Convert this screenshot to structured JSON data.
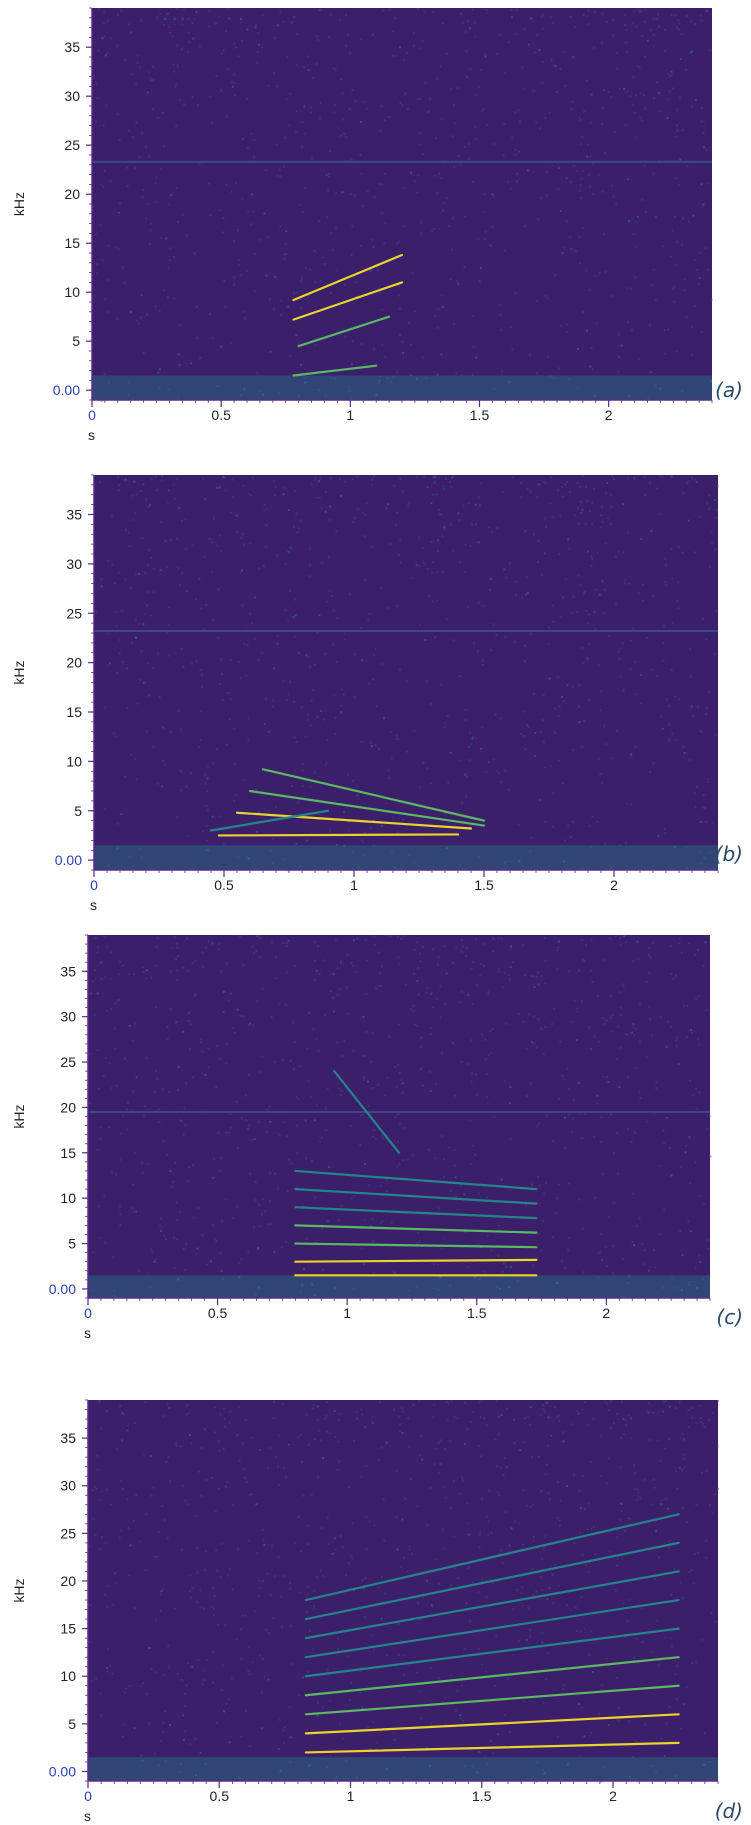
{
  "chart_data": [
    {
      "type": "heatmap",
      "panel_label": "(a)",
      "xlabel": "s",
      "ylabel": "kHz",
      "xlim": [
        0,
        2.4
      ],
      "ylim": [
        -1,
        39
      ],
      "x_ticks": [
        "0",
        "0.5",
        "1",
        "1.5",
        "2"
      ],
      "x_tick_values": [
        0,
        0.5,
        1,
        1.5,
        2
      ],
      "y_ticks": [
        "0.00",
        "5",
        "10",
        "15",
        "20",
        "25",
        "30",
        "35"
      ],
      "y_tick_values": [
        0,
        5,
        10,
        15,
        20,
        25,
        30,
        35
      ],
      "colormap": [
        "#3b1f6b",
        "#3b4e8c",
        "#21908d",
        "#5ec962",
        "#fde725"
      ],
      "noise_line_khz": 23.3,
      "call_segments": [
        {
          "t": [
            0.78,
            1.2
          ],
          "f": [
            9.2,
            13.8
          ]
        },
        {
          "t": [
            0.78,
            1.2
          ],
          "f": [
            7.2,
            11.0
          ]
        },
        {
          "t": [
            0.8,
            1.15
          ],
          "f": [
            4.5,
            7.5
          ]
        },
        {
          "t": [
            0.78,
            1.1
          ],
          "f": [
            1.5,
            2.5
          ]
        }
      ]
    },
    {
      "type": "heatmap",
      "panel_label": "(b)",
      "xlabel": "s",
      "ylabel": "kHz",
      "xlim": [
        0,
        2.4
      ],
      "ylim": [
        -1,
        39
      ],
      "x_ticks": [
        "0",
        "0.5",
        "1",
        "1.5",
        "2"
      ],
      "x_tick_values": [
        0,
        0.5,
        1,
        1.5,
        2
      ],
      "y_ticks": [
        "0.00",
        "5",
        "10",
        "15",
        "20",
        "25",
        "30",
        "35"
      ],
      "y_tick_values": [
        0,
        5,
        10,
        15,
        20,
        25,
        30,
        35
      ],
      "colormap": [
        "#3b1f6b",
        "#3b4e8c",
        "#21908d",
        "#5ec962",
        "#fde725"
      ],
      "noise_line_khz": 23.2,
      "call_segments": [
        {
          "t": [
            0.48,
            1.4
          ],
          "f": [
            2.5,
            2.6
          ]
        },
        {
          "t": [
            0.55,
            1.45
          ],
          "f": [
            4.8,
            3.2
          ]
        },
        {
          "t": [
            0.6,
            1.5
          ],
          "f": [
            7.0,
            3.5
          ]
        },
        {
          "t": [
            0.65,
            1.5
          ],
          "f": [
            9.2,
            4.0
          ]
        },
        {
          "t": [
            0.45,
            0.9
          ],
          "f": [
            3.0,
            5.0
          ]
        }
      ]
    },
    {
      "type": "heatmap",
      "panel_label": "(c)",
      "xlabel": "s",
      "ylabel": "kHz",
      "xlim": [
        0,
        2.4
      ],
      "ylim": [
        -1,
        39
      ],
      "x_ticks": [
        "0",
        "0.5",
        "1",
        "1.5",
        "2"
      ],
      "x_tick_values": [
        0,
        0.5,
        1,
        1.5,
        2
      ],
      "y_ticks": [
        "0.00",
        "5",
        "10",
        "15",
        "20",
        "25",
        "30",
        "35"
      ],
      "y_tick_values": [
        0,
        5,
        10,
        15,
        20,
        25,
        30,
        35
      ],
      "colormap": [
        "#3b1f6b",
        "#3b4e8c",
        "#21908d",
        "#5ec962",
        "#fde725"
      ],
      "noise_line_khz": 19.5,
      "call_segments": [
        {
          "t": [
            0.8,
            1.73
          ],
          "f": [
            1.5,
            1.5
          ]
        },
        {
          "t": [
            0.8,
            1.73
          ],
          "f": [
            3.0,
            3.2
          ]
        },
        {
          "t": [
            0.8,
            1.73
          ],
          "f": [
            5.0,
            4.6
          ]
        },
        {
          "t": [
            0.8,
            1.73
          ],
          "f": [
            7.0,
            6.2
          ]
        },
        {
          "t": [
            0.8,
            1.73
          ],
          "f": [
            9.0,
            7.8
          ]
        },
        {
          "t": [
            0.8,
            1.73
          ],
          "f": [
            11.0,
            9.4
          ]
        },
        {
          "t": [
            0.8,
            1.73
          ],
          "f": [
            13.0,
            11.0
          ]
        },
        {
          "t": [
            0.95,
            1.2
          ],
          "f": [
            24.0,
            15.0
          ]
        }
      ]
    },
    {
      "type": "heatmap",
      "panel_label": "(d)",
      "xlabel": "s",
      "ylabel": "kHz",
      "xlim": [
        0,
        2.4
      ],
      "ylim": [
        -1,
        39
      ],
      "x_ticks": [
        "0",
        "0.5",
        "1",
        "1.5",
        "2"
      ],
      "x_tick_values": [
        0,
        0.5,
        1,
        1.5,
        2
      ],
      "y_ticks": [
        "0.00",
        "5",
        "10",
        "15",
        "20",
        "25",
        "30",
        "35"
      ],
      "y_tick_values": [
        0,
        5,
        10,
        15,
        20,
        25,
        30,
        35
      ],
      "colormap": [
        "#3b1f6b",
        "#3b4e8c",
        "#21908d",
        "#5ec962",
        "#fde725"
      ],
      "call_segments": [
        {
          "t": [
            0.83,
            2.25
          ],
          "f": [
            2.0,
            3.0
          ]
        },
        {
          "t": [
            0.83,
            2.25
          ],
          "f": [
            4.0,
            6.0
          ]
        },
        {
          "t": [
            0.83,
            2.25
          ],
          "f": [
            6.0,
            9.0
          ]
        },
        {
          "t": [
            0.83,
            2.25
          ],
          "f": [
            8.0,
            12.0
          ]
        },
        {
          "t": [
            0.83,
            2.25
          ],
          "f": [
            10.0,
            15.0
          ]
        },
        {
          "t": [
            0.83,
            2.25
          ],
          "f": [
            12.0,
            18.0
          ]
        },
        {
          "t": [
            0.83,
            2.25
          ],
          "f": [
            14.0,
            21.0
          ]
        },
        {
          "t": [
            0.83,
            2.25
          ],
          "f": [
            16.0,
            24.0
          ]
        },
        {
          "t": [
            0.83,
            2.25
          ],
          "f": [
            18.0,
            27.0
          ]
        }
      ]
    }
  ]
}
